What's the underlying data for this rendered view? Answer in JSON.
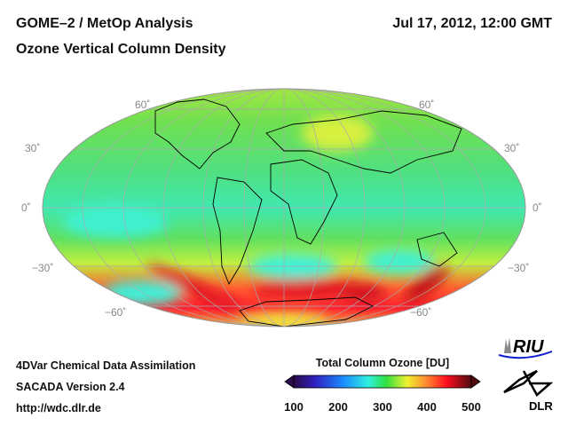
{
  "header": {
    "title": "GOME–2 / MetOp Analysis",
    "subtitle": "Ozone Vertical Column Density",
    "datetime": "Jul 17, 2012, 12:00 GMT"
  },
  "map": {
    "lat_labels": {
      "n60": "60˚",
      "n30": "30˚",
      "eq": "0˚",
      "s30": "−30˚",
      "s60": "−60˚"
    }
  },
  "footer": {
    "line1": "4DVar Chemical Data Assimilation",
    "line2": "SACADA Version 2.4",
    "line3": "http://wdc.dlr.de"
  },
  "colorbar": {
    "title": "Total Column Ozone [DU]",
    "ticks": [
      "100",
      "200",
      "300",
      "400",
      "500"
    ],
    "range": [
      100,
      500
    ],
    "colors": [
      "#2a0a4a",
      "#3020c0",
      "#1a8cff",
      "#30f0e0",
      "#30e040",
      "#f0f030",
      "#ff9030",
      "#ff1020",
      "#500a10"
    ]
  },
  "logos": {
    "riu": "RIU",
    "dlr": "DLR"
  }
}
